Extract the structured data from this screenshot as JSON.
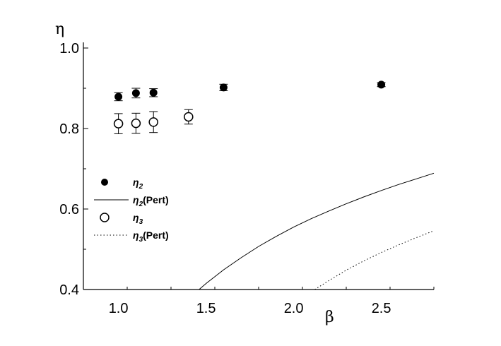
{
  "chart_data": {
    "type": "scatter",
    "title": "",
    "xlabel": "β",
    "ylabel": "η",
    "xlim": [
      0.8,
      2.8
    ],
    "ylim": [
      0.4,
      1.0
    ],
    "x_ticks": [
      "1.0",
      "1.5",
      "2.0",
      "2.5"
    ],
    "y_ticks": [
      "0.4",
      "0.6",
      "0.8",
      "1.0"
    ],
    "grid": false,
    "legend": {
      "placement": "center-left"
    },
    "series": [
      {
        "name": "η2",
        "legend_label": "η",
        "legend_sub": "2",
        "kind": "points",
        "marker": "filled-circle",
        "points": [
          {
            "x": 1.0,
            "y": 0.879,
            "err": 0.01
          },
          {
            "x": 1.1,
            "y": 0.888,
            "err": 0.012
          },
          {
            "x": 1.2,
            "y": 0.889,
            "err": 0.01
          },
          {
            "x": 1.6,
            "y": 0.902,
            "err": 0.008
          },
          {
            "x": 2.5,
            "y": 0.909,
            "err": 0.005
          }
        ]
      },
      {
        "name": "η2(Pert)",
        "legend_label": "η",
        "legend_sub": "2",
        "legend_suffix": "(Pert)",
        "kind": "line",
        "linestyle": "solid",
        "points": [
          [
            1.46,
            0.4
          ],
          [
            1.5,
            0.415
          ],
          [
            1.6,
            0.449
          ],
          [
            1.7,
            0.479
          ],
          [
            1.8,
            0.507
          ],
          [
            1.9,
            0.532
          ],
          [
            2.0,
            0.555
          ],
          [
            2.1,
            0.576
          ],
          [
            2.2,
            0.595
          ],
          [
            2.3,
            0.613
          ],
          [
            2.4,
            0.63
          ],
          [
            2.5,
            0.646
          ],
          [
            2.6,
            0.661
          ],
          [
            2.7,
            0.675
          ],
          [
            2.8,
            0.689
          ]
        ]
      },
      {
        "name": "η3",
        "legend_label": "η",
        "legend_sub": "3",
        "kind": "points",
        "marker": "open-circle",
        "points": [
          {
            "x": 1.0,
            "y": 0.812,
            "err": 0.025
          },
          {
            "x": 1.1,
            "y": 0.813,
            "err": 0.025
          },
          {
            "x": 1.2,
            "y": 0.816,
            "err": 0.026
          },
          {
            "x": 1.4,
            "y": 0.829,
            "err": 0.018
          }
        ]
      },
      {
        "name": "η3(Pert)",
        "legend_label": "η",
        "legend_sub": "3",
        "legend_suffix": "(Pert)",
        "kind": "line",
        "linestyle": "dotted",
        "points": [
          [
            2.12,
            0.4
          ],
          [
            2.2,
            0.422
          ],
          [
            2.3,
            0.448
          ],
          [
            2.4,
            0.471
          ],
          [
            2.5,
            0.492
          ],
          [
            2.6,
            0.511
          ],
          [
            2.7,
            0.529
          ],
          [
            2.8,
            0.546
          ]
        ]
      }
    ]
  }
}
